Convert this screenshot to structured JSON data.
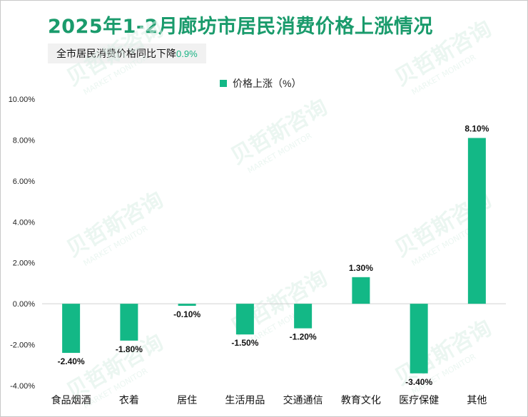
{
  "header": {
    "title": "2025年1-2月廊坊市居民消费价格上涨情况",
    "subtitle_label": "全市居民消费价格同比下降",
    "subtitle_value": "0.9%"
  },
  "colors": {
    "bar": "#13b886",
    "title": "#1a9b6c",
    "accent": "#1ab384"
  },
  "watermark": {
    "text": "贝哲斯咨询",
    "subtext": "MARKET MONITOR"
  },
  "chart_data": {
    "type": "bar",
    "categories": [
      "食品烟酒",
      "衣着",
      "居住",
      "生活用品",
      "交通通信",
      "教育文化",
      "医疗保健",
      "其他"
    ],
    "series": [
      {
        "name": "价格上涨（%）",
        "values": [
          -2.4,
          -1.8,
          -0.1,
          -1.5,
          -1.2,
          1.3,
          -3.4,
          8.1
        ]
      }
    ],
    "data_labels": [
      "-2.40%",
      "-1.80%",
      "-0.10%",
      "-1.50%",
      "-1.20%",
      "1.30%",
      "-3.40%",
      "8.10%"
    ],
    "yticks": [
      "10.00%",
      "8.00%",
      "6.00%",
      "4.00%",
      "2.00%",
      "0.00%",
      "-2.00%",
      "-4.00%"
    ],
    "ylim": [
      -4,
      10
    ],
    "legend_position": "top-center",
    "grid": false
  }
}
